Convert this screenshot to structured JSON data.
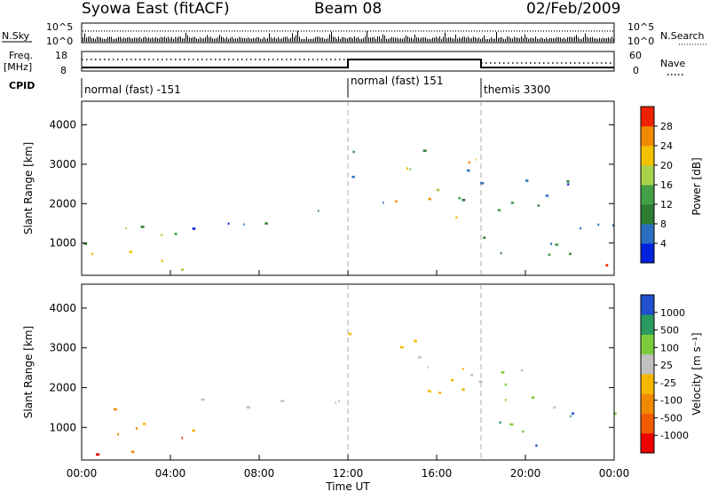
{
  "header": {
    "title": "Syowa East (fitACF)",
    "beam": "Beam 08",
    "date": "02/Feb/2009"
  },
  "left_labels": {
    "nsky": "N.Sky",
    "nsky_top": "10^5",
    "nsky_bottom": "10^0",
    "freq_line1": "Freq.",
    "freq_line2": "[MHz]",
    "freq_top": "18",
    "freq_bottom": "8",
    "cpid": "CPID"
  },
  "right_labels": {
    "nsearch": "N.Search",
    "nsearch_top": "10^5",
    "nsearch_bottom": "10^0",
    "nave": "Nave",
    "nave_top": "60",
    "nave_bottom": "0"
  },
  "cpid_segments": [
    {
      "label": "normal (fast) -151",
      "start_hour": 0
    },
    {
      "label": "normal (fast) 151",
      "start_hour": 12
    },
    {
      "label": "themis 3300",
      "start_hour": 18
    }
  ],
  "x_axis": {
    "label": "Time UT",
    "ticks": [
      "00:00",
      "04:00",
      "08:00",
      "12:00",
      "16:00",
      "20:00",
      "00:00"
    ]
  },
  "colors": {
    "power": [
      "#0022dd",
      "#2a6fbf",
      "#2e7d32",
      "#43a047",
      "#a8d24a",
      "#f2c200",
      "#f08a00",
      "#ee2200"
    ],
    "velocity": [
      "#ee0000",
      "#f25a00",
      "#f28a00",
      "#f5b800",
      "#c0c0c0",
      "#7ccc3a",
      "#2a9a60",
      "#204fd0"
    ]
  },
  "chart_data": [
    {
      "type": "heatmap",
      "name": "power",
      "ylabel": "Slant Range [km]",
      "xlabel": "Time UT",
      "xlim": [
        0,
        24
      ],
      "ylim": [
        180,
        4600
      ],
      "yticks": [
        "1000",
        "2000",
        "3000",
        "4000"
      ],
      "colorbar": {
        "label": "Power [dB]",
        "ticks": [
          "4",
          "8",
          "12",
          "16",
          "20",
          "24",
          "28"
        ],
        "range": [
          0,
          30
        ]
      },
      "regions": [
        {
          "t0": 0.0,
          "t1": 5.5,
          "r0": 280,
          "r1": 1050,
          "v0": 6,
          "v1": 22
        },
        {
          "t0": 1.2,
          "t1": 5.0,
          "r0": 800,
          "r1": 1600,
          "v0": 10,
          "v1": 26
        },
        {
          "t0": 2.5,
          "t1": 12.0,
          "r0": 1350,
          "r1": 1900,
          "v0": 3,
          "v1": 12
        },
        {
          "t0": 12.0,
          "t1": 17.5,
          "r0": 1900,
          "r1": 3500,
          "v0": 4,
          "v1": 26
        },
        {
          "t0": 16.0,
          "t1": 18.0,
          "r0": 800,
          "r1": 3200,
          "v0": 4,
          "v1": 22
        },
        {
          "t0": 18.0,
          "t1": 24.0,
          "r0": 280,
          "r1": 1300,
          "v0": 4,
          "v1": 30
        },
        {
          "t0": 17.5,
          "t1": 24.0,
          "r0": 1300,
          "r1": 2800,
          "v0": 3,
          "v1": 14
        }
      ]
    },
    {
      "type": "heatmap",
      "name": "velocity",
      "ylabel": "Slant Range [km]",
      "xlabel": "Time UT",
      "xlim": [
        0,
        24
      ],
      "ylim": [
        180,
        4600
      ],
      "yticks": [
        "1000",
        "2000",
        "3000",
        "4000"
      ],
      "colorbar": {
        "label": "Velocity [m s⁻¹]",
        "ticks": [
          "-1000",
          "-500",
          "-100",
          "-25",
          "25",
          "100",
          "500",
          "1000"
        ],
        "range": [
          -1000,
          1000
        ]
      },
      "regions": [
        {
          "t0": 0.0,
          "t1": 5.5,
          "r0": 280,
          "r1": 1050,
          "v0": -900,
          "v1": -80
        },
        {
          "t0": 1.2,
          "t1": 5.0,
          "r0": 800,
          "r1": 1600,
          "v0": -600,
          "v1": -120
        },
        {
          "t0": 4.5,
          "t1": 12.0,
          "r0": 1350,
          "r1": 1900,
          "v0": -20,
          "v1": 20
        },
        {
          "t0": 12.0,
          "t1": 17.5,
          "r0": 1900,
          "r1": 3500,
          "v0": -20,
          "v1": 20
        },
        {
          "t0": 17.5,
          "t1": 24.0,
          "r0": 400,
          "r1": 1400,
          "v0": 120,
          "v1": 900
        },
        {
          "t0": 17.5,
          "t1": 22.0,
          "r0": 1300,
          "r1": 2800,
          "v0": 50,
          "v1": 400
        }
      ]
    }
  ]
}
